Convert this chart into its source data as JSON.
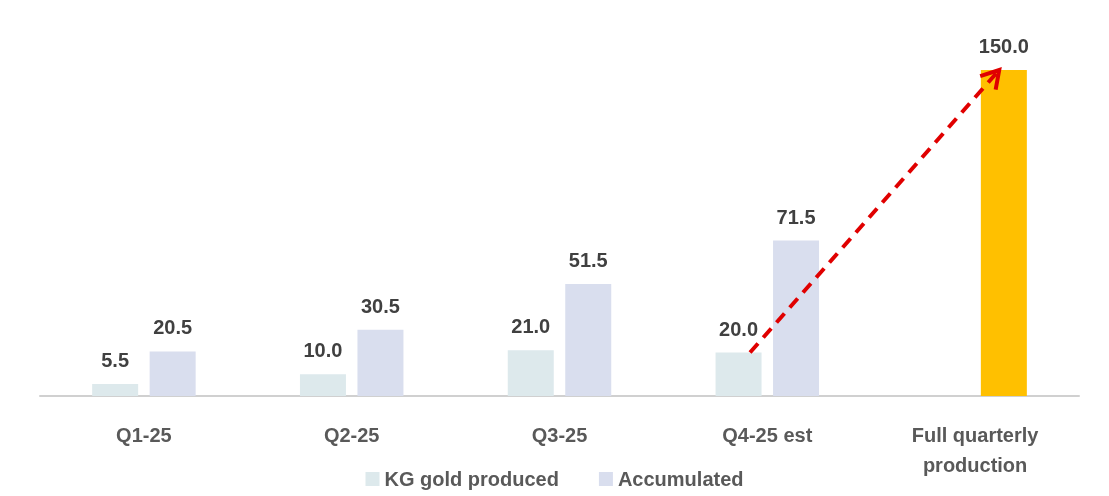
{
  "chart_data": {
    "type": "bar",
    "categories": [
      "Q1-25",
      "Q2-25",
      "Q3-25",
      "Q4-25 est",
      "Full quarterly production"
    ],
    "series": [
      {
        "name": "KG gold produced",
        "color": "#dde9ec",
        "values": [
          5.5,
          10.0,
          21.0,
          20.0,
          null
        ],
        "value_labels": [
          "5.5",
          "10.0",
          "21.0",
          "20.0",
          null
        ]
      },
      {
        "name": "Accumulated",
        "color": "#d9deee",
        "colors": [
          "#d9deee",
          "#d9deee",
          "#d9deee",
          "#d9deee",
          "#ffc000"
        ],
        "values": [
          20.5,
          30.5,
          51.5,
          71.5,
          150.0
        ],
        "value_labels": [
          "20.5",
          "30.5",
          "51.5",
          "71.5",
          "150.0"
        ]
      }
    ],
    "legend": "bottom"
  }
}
